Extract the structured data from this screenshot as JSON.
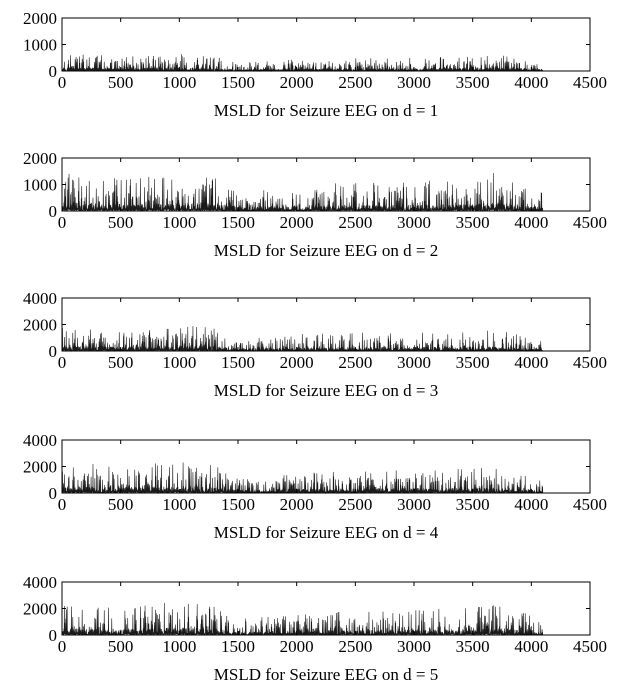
{
  "chart_data": [
    {
      "type": "line",
      "caption": "MSLD for Seizure EEG on d = 1",
      "xlim": [
        0,
        4500
      ],
      "ylim": [
        0,
        2000
      ],
      "xticks": [
        "0",
        "500",
        "1000",
        "1500",
        "2000",
        "2500",
        "3000",
        "3500",
        "4000",
        "4500"
      ],
      "yticks": [
        "0",
        "1000",
        "2000"
      ],
      "series": [
        {
          "x": [
            0,
            500,
            1000,
            1300,
            1500,
            2000,
            2500,
            3000,
            3500,
            3750,
            4096
          ],
          "values": [
            700,
            550,
            650,
            550,
            300,
            450,
            500,
            500,
            600,
            600,
            400
          ]
        }
      ]
    },
    {
      "type": "line",
      "caption": "MSLD for Seizure EEG on d = 2",
      "xlim": [
        0,
        4500
      ],
      "ylim": [
        0,
        2000
      ],
      "xticks": [
        "0",
        "500",
        "1000",
        "1500",
        "2000",
        "2500",
        "3000",
        "3500",
        "4000",
        "4500"
      ],
      "yticks": [
        "0",
        "1000",
        "2000"
      ],
      "series": [
        {
          "x": [
            0,
            500,
            1000,
            1300,
            1500,
            2000,
            2500,
            3000,
            3500,
            3750,
            4096
          ],
          "values": [
            1600,
            1200,
            1500,
            1450,
            700,
            1000,
            1100,
            1100,
            1300,
            1500,
            700
          ]
        }
      ]
    },
    {
      "type": "line",
      "caption": "MSLD for Seizure EEG on d = 3",
      "xlim": [
        0,
        4500
      ],
      "ylim": [
        0,
        4000
      ],
      "xticks": [
        "0",
        "500",
        "1000",
        "1500",
        "2000",
        "2500",
        "3000",
        "3500",
        "4000",
        "4500"
      ],
      "yticks": [
        "0",
        "2000",
        "4000"
      ],
      "series": [
        {
          "x": [
            0,
            500,
            1000,
            1300,
            1500,
            2000,
            2500,
            3000,
            3500,
            3750,
            4096
          ],
          "values": [
            1900,
            1500,
            2000,
            1800,
            900,
            1300,
            1400,
            1400,
            1500,
            1600,
            800
          ]
        }
      ]
    },
    {
      "type": "line",
      "caption": "MSLD for Seizure EEG on d = 4",
      "xlim": [
        0,
        4500
      ],
      "ylim": [
        0,
        4000
      ],
      "xticks": [
        "0",
        "500",
        "1000",
        "1500",
        "2000",
        "2500",
        "3000",
        "3500",
        "4000",
        "4500"
      ],
      "yticks": [
        "0",
        "2000",
        "4000"
      ],
      "series": [
        {
          "x": [
            0,
            500,
            1000,
            1300,
            1500,
            2000,
            2500,
            3000,
            3500,
            3750,
            4096
          ],
          "values": [
            2400,
            2000,
            2500,
            2100,
            1100,
            1500,
            1700,
            1700,
            1900,
            2000,
            900
          ]
        }
      ]
    },
    {
      "type": "line",
      "caption": "MSLD for Seizure EEG on d = 5",
      "xlim": [
        0,
        4500
      ],
      "ylim": [
        0,
        4000
      ],
      "xticks": [
        "0",
        "500",
        "1000",
        "1500",
        "2000",
        "2500",
        "3000",
        "3500",
        "4000",
        "4500"
      ],
      "yticks": [
        "0",
        "2000",
        "4000"
      ],
      "series": [
        {
          "x": [
            0,
            500,
            1000,
            1300,
            1500,
            2000,
            2500,
            3000,
            3500,
            3750,
            4096
          ],
          "values": [
            2300,
            2100,
            2600,
            2200,
            1200,
            1600,
            1800,
            1900,
            2100,
            2500,
            1000
          ]
        }
      ]
    }
  ]
}
